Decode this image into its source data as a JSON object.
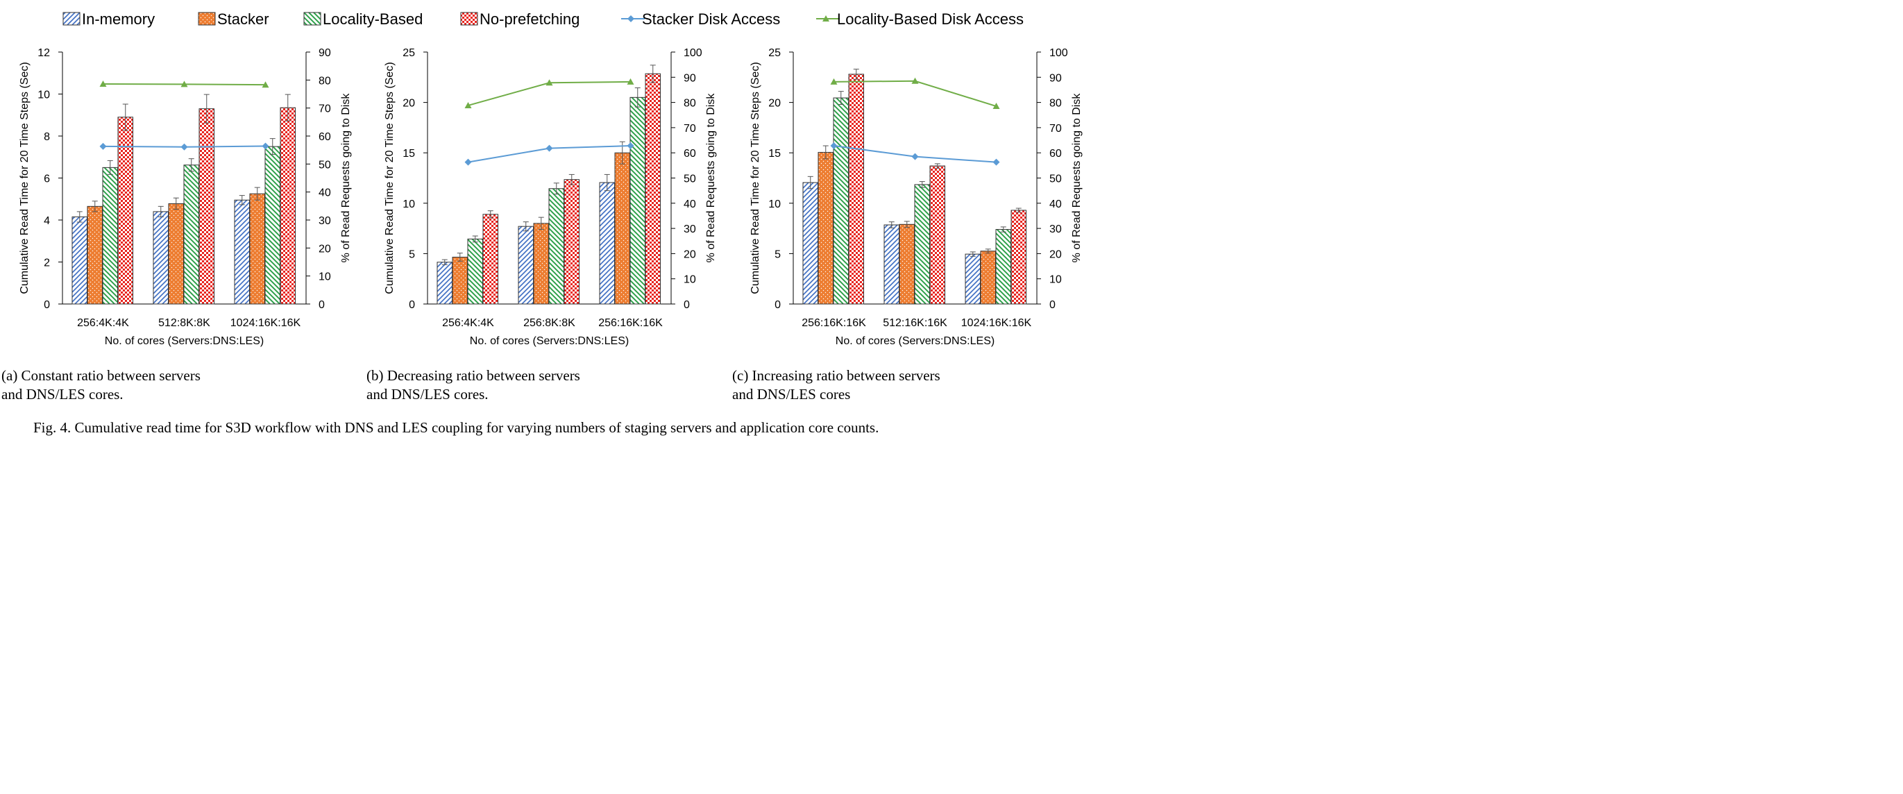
{
  "legend": [
    {
      "label": "In-memory",
      "kind": "bar",
      "pattern": "diag",
      "color": "#4472c4"
    },
    {
      "label": "Stacker",
      "kind": "bar",
      "pattern": "dots",
      "color": "#ed7d31"
    },
    {
      "label": "Locality-Based",
      "kind": "bar",
      "pattern": "diagrev",
      "color": "#4ea72e"
    },
    {
      "label": "No-prefetching",
      "kind": "bar",
      "pattern": "checker",
      "color": "#e8251f"
    },
    {
      "label": "Stacker Disk Access",
      "kind": "line",
      "marker": "diamond",
      "color": "#5b9bd5"
    },
    {
      "label": "Locality-Based Disk Access",
      "kind": "line",
      "marker": "triangle",
      "color": "#70ad47"
    }
  ],
  "chart_data": [
    {
      "type": "bar",
      "categories": [
        "256:4K:4K",
        "512:8K:8K",
        "1024:16K:16K"
      ],
      "xlabel": "No. of cores (Servers:DNS:LES)",
      "ylabel": "Cumulative Read Time for 20 Time Steps (Sec)",
      "y2label": "% of Read Requests going to Disk",
      "ylim": [
        0,
        12
      ],
      "yticks": [
        0,
        2,
        4,
        6,
        8,
        10,
        12
      ],
      "y2lim": [
        0,
        90
      ],
      "y2ticks": [
        0,
        10,
        20,
        30,
        40,
        50,
        60,
        70,
        80,
        90
      ],
      "series": [
        {
          "name": "In-memory",
          "values": [
            4.15,
            4.4,
            4.95
          ],
          "errors": [
            0.25,
            0.25,
            0.22
          ]
        },
        {
          "name": "Stacker",
          "values": [
            4.65,
            4.78,
            5.25
          ],
          "errors": [
            0.25,
            0.27,
            0.3
          ]
        },
        {
          "name": "Locality-Based",
          "values": [
            6.5,
            6.62,
            7.5
          ],
          "errors": [
            0.33,
            0.3,
            0.38
          ]
        },
        {
          "name": "No-prefetching",
          "values": [
            8.9,
            9.3,
            9.35
          ],
          "errors": [
            0.62,
            0.68,
            0.63
          ]
        }
      ],
      "line_series": [
        {
          "name": "Stacker Disk Access",
          "values": [
            56.3,
            56.1,
            56.4
          ]
        },
        {
          "name": "Locality-Based Disk Access",
          "values": [
            78.6,
            78.5,
            78.3
          ]
        }
      ],
      "subcaption": [
        "(a) Constant ratio between servers",
        "and DNS/LES cores."
      ]
    },
    {
      "type": "bar",
      "categories": [
        "256:4K:4K",
        "256:8K:8K",
        "256:16K:16K"
      ],
      "xlabel": "No. of cores (Servers:DNS:LES)",
      "ylabel": "Cumulative Read Time for 20 Time Steps (Sec)",
      "y2label": "% of Read Requests going to Disk",
      "ylim": [
        0,
        25
      ],
      "yticks": [
        0,
        5,
        10,
        15,
        20,
        25
      ],
      "y2lim": [
        0,
        100
      ],
      "y2ticks": [
        0,
        10,
        20,
        30,
        40,
        50,
        60,
        70,
        80,
        90,
        100
      ],
      "series": [
        {
          "name": "In-memory",
          "values": [
            4.15,
            7.7,
            12.05
          ],
          "errors": [
            0.25,
            0.45,
            0.8
          ]
        },
        {
          "name": "Stacker",
          "values": [
            4.65,
            8.0,
            15.0
          ],
          "errors": [
            0.4,
            0.6,
            1.1
          ]
        },
        {
          "name": "Locality-Based",
          "values": [
            6.45,
            11.45,
            20.5
          ],
          "errors": [
            0.3,
            0.55,
            0.95
          ]
        },
        {
          "name": "No-prefetching",
          "values": [
            8.9,
            12.35,
            22.85
          ],
          "errors": [
            0.35,
            0.5,
            0.85
          ]
        }
      ],
      "line_series": [
        {
          "name": "Stacker Disk Access",
          "values": [
            56.3,
            61.8,
            62.8
          ]
        },
        {
          "name": "Locality-Based Disk Access",
          "values": [
            78.8,
            87.8,
            88.2
          ]
        }
      ],
      "subcaption": [
        "(b) Decreasing ratio between servers",
        "and DNS/LES cores."
      ]
    },
    {
      "type": "bar",
      "categories": [
        "256:16K:16K",
        "512:16K:16K",
        "1024:16K:16K"
      ],
      "xlabel": "No. of cores (Servers:DNS:LES)",
      "ylabel": "Cumulative Read Time for 20 Time Steps (Sec)",
      "y2label": "% of Read Requests going to Disk",
      "ylim": [
        0,
        25
      ],
      "yticks": [
        0,
        5,
        10,
        15,
        20,
        25
      ],
      "y2lim": [
        0,
        100
      ],
      "y2ticks": [
        0,
        10,
        20,
        30,
        40,
        50,
        60,
        70,
        80,
        90,
        100
      ],
      "series": [
        {
          "name": "In-memory",
          "values": [
            12.05,
            7.85,
            4.95
          ],
          "errors": [
            0.6,
            0.3,
            0.22
          ]
        },
        {
          "name": "Stacker",
          "values": [
            15.05,
            7.9,
            5.25
          ],
          "errors": [
            0.65,
            0.3,
            0.2
          ]
        },
        {
          "name": "Locality-Based",
          "values": [
            20.45,
            11.85,
            7.4
          ],
          "errors": [
            0.65,
            0.3,
            0.25
          ]
        },
        {
          "name": "No-prefetching",
          "values": [
            22.8,
            13.7,
            9.3
          ],
          "errors": [
            0.5,
            0.22,
            0.2
          ]
        }
      ],
      "line_series": [
        {
          "name": "Stacker Disk Access",
          "values": [
            62.8,
            58.5,
            56.3
          ]
        },
        {
          "name": "Locality-Based Disk Access",
          "values": [
            88.2,
            88.5,
            78.5
          ]
        }
      ],
      "subcaption": [
        "(c) Increasing ratio between servers",
        "and DNS/LES cores"
      ]
    }
  ],
  "caption": "Fig. 4.  Cumulative read time for S3D workflow with DNS and LES coupling for varying numbers of staging servers and application core counts."
}
